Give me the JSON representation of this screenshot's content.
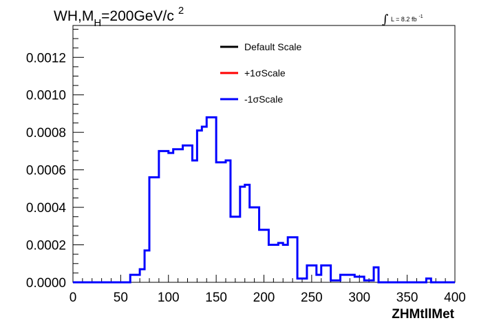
{
  "chart_data": {
    "type": "histogram",
    "title_main": "WH,M",
    "title_sub": "H",
    "title_rest": "=200GeV/c",
    "title_sup": "2",
    "lumi_text": "L = 8.2 fb",
    "lumi_sup": "-1",
    "lumi_integral": "∫",
    "xlabel": "ZHMtllMet",
    "xlim": [
      0,
      400
    ],
    "ylim": [
      0,
      0.00137
    ],
    "x_ticks": [
      "0",
      "50",
      "100",
      "150",
      "200",
      "250",
      "300",
      "350",
      "400"
    ],
    "y_ticks": [
      "0.0000",
      "0.0002",
      "0.0004",
      "0.0006",
      "0.0008",
      "0.0010",
      "0.0012"
    ],
    "bin_edges": [
      0,
      5,
      10,
      15,
      20,
      25,
      30,
      35,
      40,
      45,
      50,
      55,
      60,
      65,
      70,
      75,
      80,
      85,
      90,
      95,
      100,
      105,
      110,
      115,
      120,
      125,
      130,
      135,
      140,
      145,
      150,
      155,
      160,
      165,
      170,
      175,
      180,
      185,
      190,
      195,
      200,
      205,
      210,
      215,
      220,
      225,
      230,
      235,
      240,
      245,
      250,
      255,
      260,
      265,
      270,
      275,
      280,
      285,
      290,
      295,
      300,
      305,
      310,
      315,
      320,
      325,
      330,
      335,
      340,
      345,
      350,
      355,
      360,
      365,
      370,
      375,
      380,
      385,
      390,
      395,
      400
    ],
    "legend": [
      {
        "name": "Default Scale",
        "color": "#000000"
      },
      {
        "name": "+1σScale",
        "color": "#ff0000"
      },
      {
        "name": "-1σScale",
        "color": "#0000ff"
      }
    ],
    "series": [
      {
        "name": "-1σScale",
        "color": "#0000ff",
        "values": [
          0,
          0,
          0,
          0,
          0,
          0,
          0,
          0,
          0,
          0,
          0,
          0,
          4e-05,
          4e-05,
          7e-05,
          0.00017,
          0.00056,
          0.00056,
          0.0007,
          0.0007,
          0.00069,
          0.00071,
          0.00071,
          0.00073,
          0.00073,
          0.00065,
          0.00081,
          0.00083,
          0.00088,
          0.00088,
          0.00064,
          0.00064,
          0.00065,
          0.00035,
          0.00035,
          0.00051,
          0.00052,
          0.0004,
          0.0004,
          0.00028,
          0.00028,
          0.0002,
          0.0002,
          0.00021,
          0.0002,
          0.00024,
          0.00024,
          2e-05,
          2e-05,
          9e-05,
          9e-05,
          4e-05,
          9e-05,
          9e-05,
          1e-05,
          1e-05,
          4e-05,
          4e-05,
          4e-05,
          3e-05,
          3e-05,
          1e-05,
          1e-05,
          8e-05,
          0,
          0,
          0,
          0,
          0,
          0,
          0,
          0,
          0,
          0,
          2e-05,
          0,
          0,
          0,
          0,
          0
        ]
      }
    ]
  }
}
